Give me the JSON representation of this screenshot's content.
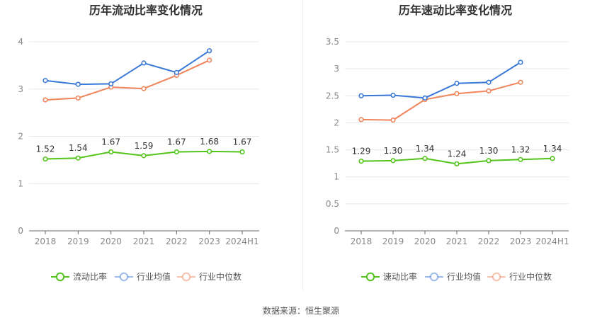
{
  "chart_data": [
    {
      "type": "line",
      "title": "历年流动比率变化情况",
      "categories": [
        "2018",
        "2019",
        "2020",
        "2021",
        "2022",
        "2023",
        "2024H1"
      ],
      "ylim": [
        0,
        4
      ],
      "yticks": [
        0,
        1,
        2,
        3,
        4
      ],
      "ytick_labels": [
        "0",
        "1",
        "2",
        "3",
        "4"
      ],
      "grid": true,
      "legend_position": "bottom",
      "series": [
        {
          "name": "流动比率",
          "color": "#52c41a",
          "values": [
            1.52,
            1.54,
            1.67,
            1.59,
            1.67,
            1.68,
            1.67
          ],
          "labels": [
            "1.52",
            "1.54",
            "1.67",
            "1.59",
            "1.67",
            "1.68",
            "1.67"
          ]
        },
        {
          "name": "行业均值",
          "color": "#3a78d8",
          "values": [
            3.18,
            3.1,
            3.11,
            3.55,
            3.35,
            3.81,
            null
          ]
        },
        {
          "name": "行业中位数",
          "color": "#f0845a",
          "values": [
            2.77,
            2.81,
            3.04,
            3.01,
            3.29,
            3.61,
            null
          ]
        }
      ]
    },
    {
      "type": "line",
      "title": "历年速动比率变化情况",
      "categories": [
        "2018",
        "2019",
        "2020",
        "2021",
        "2022",
        "2023",
        "2024H1"
      ],
      "ylim": [
        0,
        3.5
      ],
      "yticks": [
        0,
        0.5,
        1,
        1.5,
        2,
        2.5,
        3,
        3.5
      ],
      "ytick_labels": [
        "0",
        "0.5",
        "1",
        "1.5",
        "2",
        "2.5",
        "3",
        "3.5"
      ],
      "grid": true,
      "legend_position": "bottom",
      "series": [
        {
          "name": "速动比率",
          "color": "#52c41a",
          "values": [
            1.29,
            1.3,
            1.34,
            1.24,
            1.3,
            1.32,
            1.34
          ],
          "labels": [
            "1.29",
            "1.30",
            "1.34",
            "1.24",
            "1.30",
            "1.32",
            "1.34"
          ]
        },
        {
          "name": "行业均值",
          "color": "#3a78d8",
          "values": [
            2.5,
            2.51,
            2.46,
            2.73,
            2.75,
            3.12,
            null
          ]
        },
        {
          "name": "行业中位数",
          "color": "#f0845a",
          "values": [
            2.06,
            2.05,
            2.43,
            2.54,
            2.59,
            2.75,
            null
          ]
        }
      ]
    }
  ],
  "footer": {
    "source": "数据来源：恒生聚源"
  }
}
